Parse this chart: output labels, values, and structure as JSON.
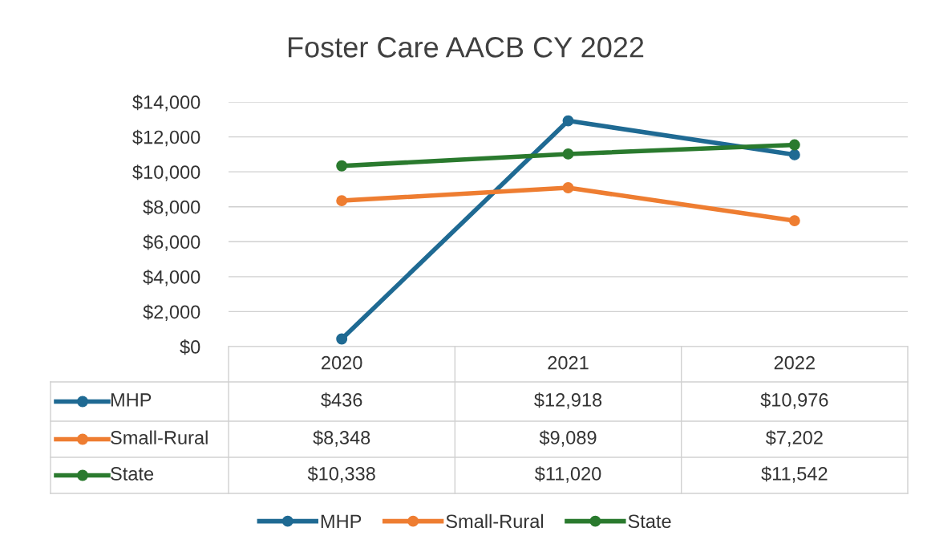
{
  "chart_data": {
    "type": "line",
    "title": "Foster Care AACB CY 2022",
    "categories": [
      "2020",
      "2021",
      "2022"
    ],
    "series": [
      {
        "name": "MHP",
        "color": "#1f6a93",
        "values": [
          436,
          12918,
          10976
        ],
        "value_labels": [
          "$436",
          "$12,918",
          "$10,976"
        ]
      },
      {
        "name": "Small-Rural",
        "color": "#ee7d31",
        "values": [
          8348,
          9089,
          7202
        ],
        "value_labels": [
          "$8,348",
          "$9,089",
          "$7,202"
        ]
      },
      {
        "name": "State",
        "color": "#2a7a2e",
        "values": [
          10338,
          11020,
          11542
        ],
        "value_labels": [
          "$10,338",
          "$11,020",
          "$11,542"
        ]
      }
    ],
    "ylim": [
      0,
      14000
    ],
    "yticks": [
      {
        "value": 0,
        "label": "$0"
      },
      {
        "value": 2000,
        "label": "$2,000"
      },
      {
        "value": 4000,
        "label": "$4,000"
      },
      {
        "value": 6000,
        "label": "$6,000"
      },
      {
        "value": 8000,
        "label": "$8,000"
      },
      {
        "value": 10000,
        "label": "$10,000"
      },
      {
        "value": 12000,
        "label": "$12,000"
      },
      {
        "value": 14000,
        "label": "$14,000"
      }
    ],
    "grid": "y",
    "legend": "bottom",
    "marker": "circle",
    "line_style": "solid"
  }
}
